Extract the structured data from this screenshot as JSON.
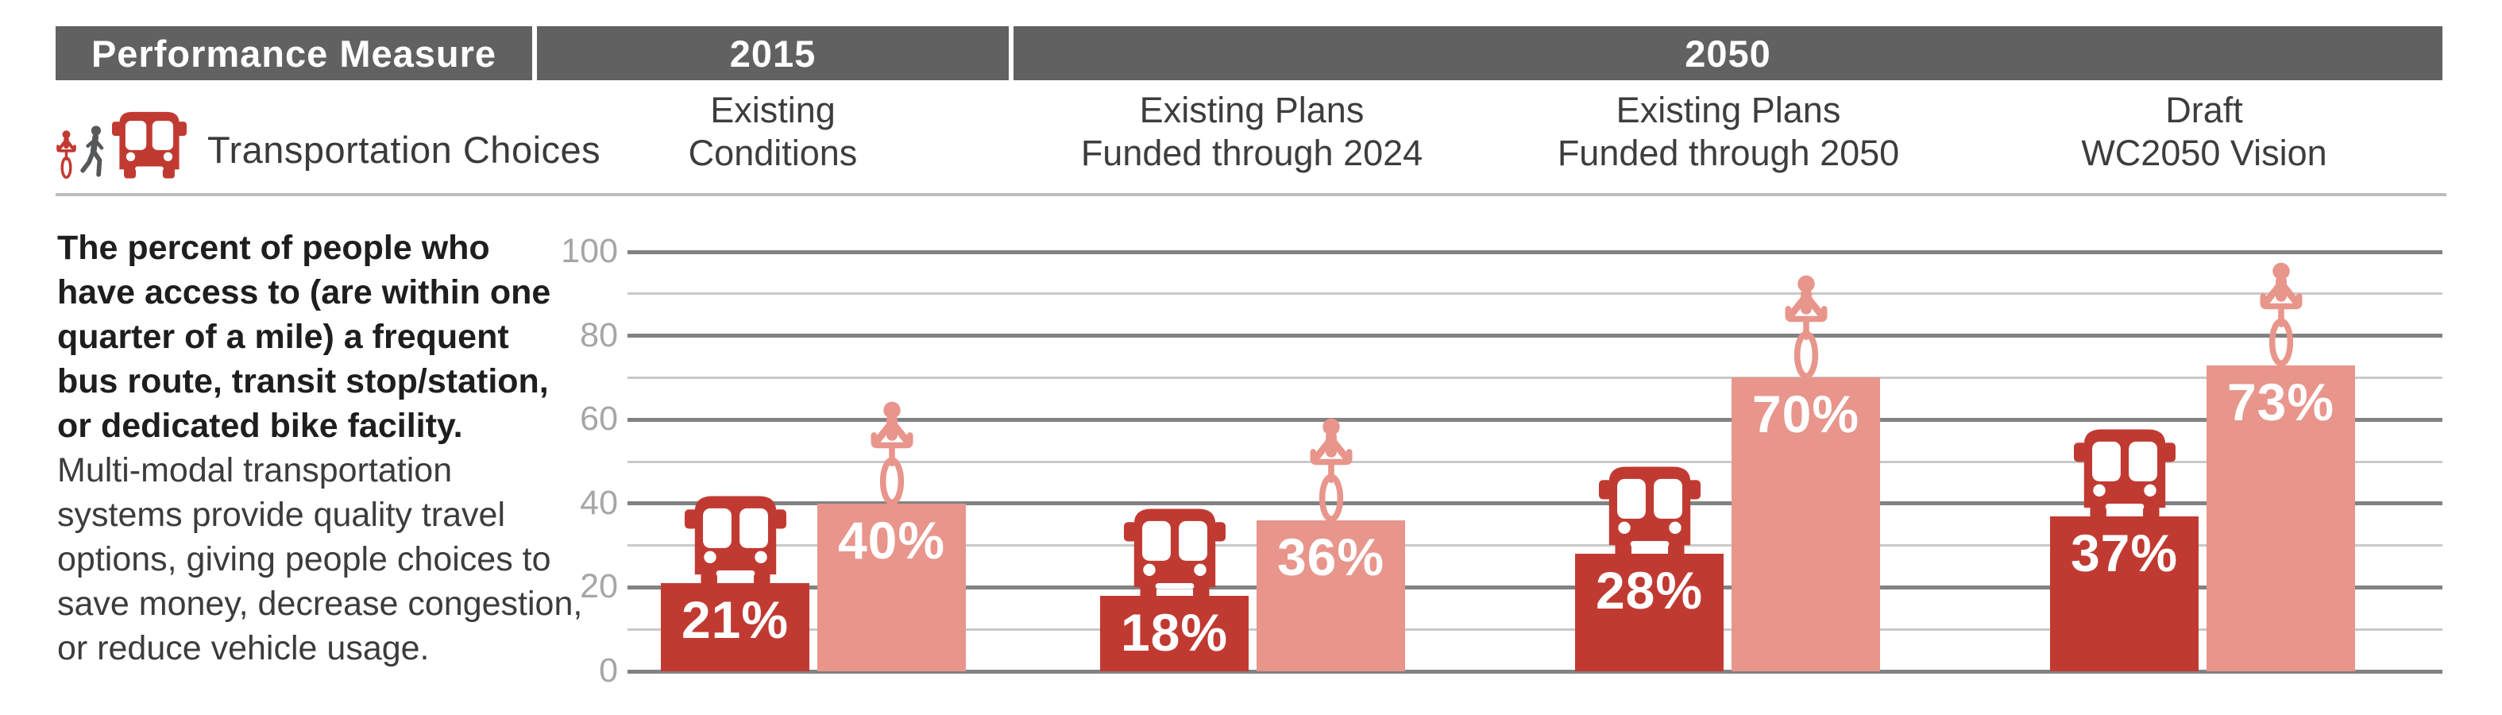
{
  "table": {
    "header": [
      {
        "label": "Performance Measure"
      },
      {
        "label": "2015"
      },
      {
        "label": "2050"
      }
    ],
    "columns": [
      {
        "lines": [
          "Existing",
          "Conditions"
        ]
      },
      {
        "lines": [
          "Existing Plans",
          "Funded through 2024"
        ]
      },
      {
        "lines": [
          "Existing Plans",
          "Funded through 2050"
        ]
      },
      {
        "lines": [
          "Draft",
          "WC2050 Vision"
        ]
      }
    ]
  },
  "measure": {
    "label": "Transportation Choices",
    "icons": [
      "cyclist-icon",
      "pedestrian-icon",
      "bus-icon"
    ]
  },
  "description": {
    "bold_lines": [
      "The percent of people who",
      "have access to (are within one",
      "quarter of a mile) a frequent",
      "bus route, transit stop/station,",
      "or dedicated bike facility."
    ],
    "regular_lines": [
      "Multi-modal transportation",
      "systems provide quality travel",
      "options, giving people choices to",
      "save money, decrease congestion,",
      "or reduce vehicle usage."
    ]
  },
  "chart_data": {
    "type": "bar",
    "categories": [
      "Existing Conditions",
      "Existing Plans Funded through 2024",
      "Existing Plans Funded through 2050",
      "Draft WC2050 Vision"
    ],
    "series": [
      {
        "name": "bus-access",
        "icon": "bus-icon",
        "color": "#c13a32",
        "values": [
          21,
          18,
          28,
          37
        ],
        "labels": [
          "21%",
          "18%",
          "28%",
          "37%"
        ]
      },
      {
        "name": "bike-access",
        "icon": "cyclist-icon",
        "color": "#e8958c",
        "values": [
          40,
          36,
          70,
          73
        ],
        "labels": [
          "40%",
          "36%",
          "70%",
          "73%"
        ]
      }
    ],
    "yticks": [
      0,
      20,
      40,
      60,
      80,
      100
    ],
    "minor_step": 10,
    "ylim": [
      0,
      100
    ],
    "grid": "horizontal",
    "legend": "none"
  },
  "colors": {
    "header_bg": "#616161",
    "header_text": "#ffffff",
    "bar_red": "#c13a32",
    "bar_pink": "#e8958c",
    "pedestrian_gray": "#56585a",
    "grid_major": "#828282",
    "grid_minor": "#c9c9c9",
    "axis_label": "#a6a6a6",
    "divider": "#bdbdbd"
  }
}
